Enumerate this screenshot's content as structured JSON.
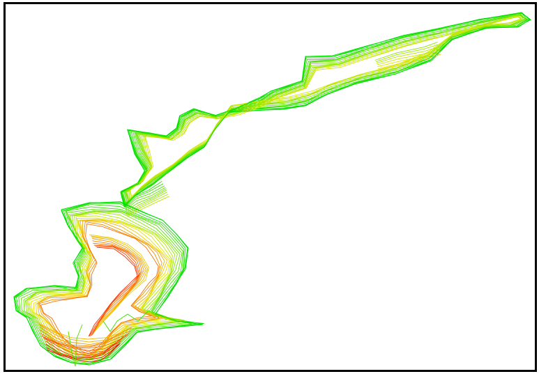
{
  "viewport": {
    "background": "#ffffff",
    "border_color": "#000000"
  },
  "contour_map": {
    "color_ramp": {
      "low_elevation_color": "#00e000",
      "mid_elevation_color": "#e8e800",
      "high_elevation_color": "#ff0000"
    },
    "line_count_per_band": 14
  }
}
